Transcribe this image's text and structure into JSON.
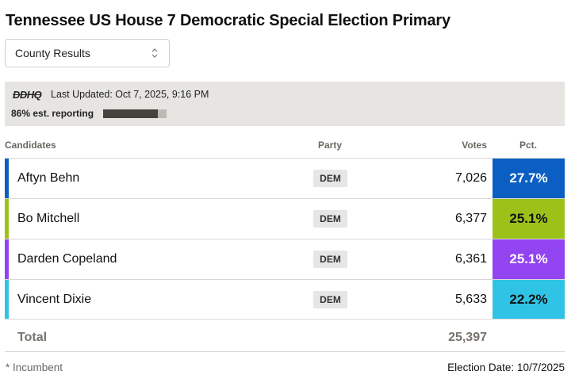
{
  "title": "Tennessee US House 7 Democratic Special Election Primary",
  "selector": {
    "value": "County Results",
    "icon": "updown-chevron-icon"
  },
  "info": {
    "logo": "DDHQ",
    "last_updated": "Last Updated: Oct 7, 2025, 9:16 PM",
    "reporting_label": "86% est. reporting",
    "reporting_pct": 86
  },
  "columns": {
    "candidates": "Candidates",
    "party": "Party",
    "votes": "Votes",
    "pct": "Pct."
  },
  "candidates": [
    {
      "name": "Aftyn Behn",
      "party": "DEM",
      "votes": "7,026",
      "pct": "27.7%",
      "color": "#0b5fc2",
      "pct_text_color": "#ffffff"
    },
    {
      "name": "Bo Mitchell",
      "party": "DEM",
      "votes": "6,377",
      "pct": "25.1%",
      "color": "#9cc21a",
      "pct_text_color": "#111111"
    },
    {
      "name": "Darden Copeland",
      "party": "DEM",
      "votes": "6,361",
      "pct": "25.1%",
      "color": "#9244f0",
      "pct_text_color": "#ffffff"
    },
    {
      "name": "Vincent Dixie",
      "party": "DEM",
      "votes": "5,633",
      "pct": "22.2%",
      "color": "#2fc3e6",
      "pct_text_color": "#111111"
    }
  ],
  "total": {
    "label": "Total",
    "votes": "25,397"
  },
  "footer": {
    "incumbent_note": "* Incumbent",
    "election_date": "Election Date: 10/7/2025"
  }
}
